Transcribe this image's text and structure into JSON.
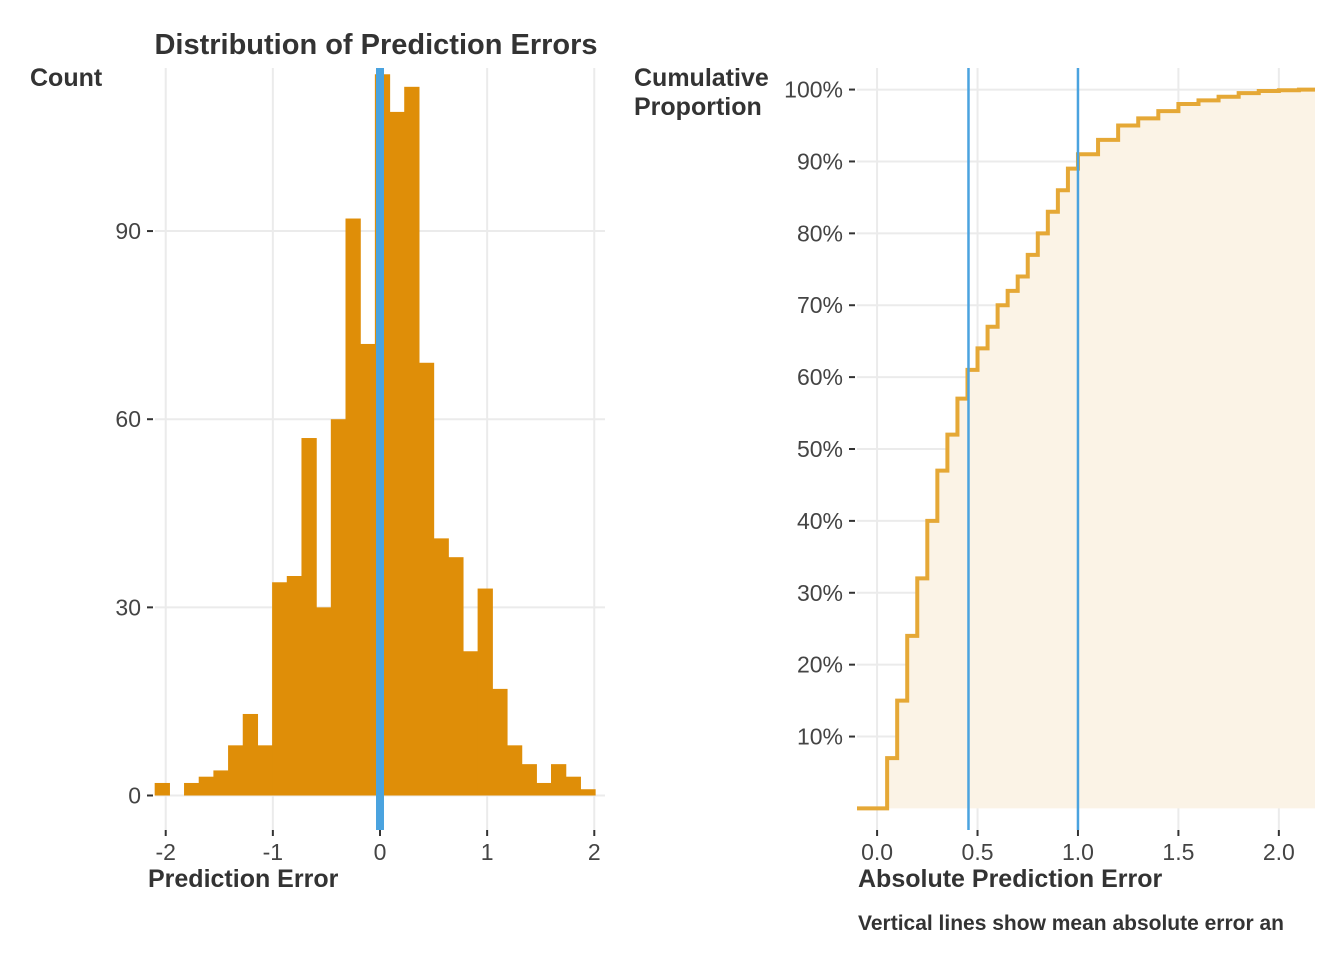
{
  "colors": {
    "bar": "#DF8E08",
    "zero_line": "#4AA3DF",
    "ecdf_line": "#E5A836",
    "ecdf_fill": "#FBF3E6",
    "vline": "#4AA3DF",
    "grid": "#EBEBEB",
    "text": "#333333",
    "tick": "#444444"
  },
  "chart_data": [
    {
      "type": "bar",
      "title": "Distribution of Prediction Errors",
      "xlabel": "Prediction Error",
      "ylabel": "Count",
      "xlim": [
        -2.1,
        2.1
      ],
      "ylim": [
        -5.5,
        116
      ],
      "x_ticks": [
        -2,
        -1,
        0,
        1,
        2
      ],
      "x_tick_labels": [
        "-2",
        "-1",
        "0",
        "1",
        "2"
      ],
      "y_ticks": [
        0,
        30,
        60,
        90
      ],
      "y_tick_labels": [
        "0",
        "30",
        "60",
        "90"
      ],
      "bin_width": 0.137,
      "bin_start": -2.103,
      "values": [
        2,
        0,
        2,
        3,
        4,
        8,
        13,
        8,
        34,
        35,
        57,
        30,
        60,
        92,
        72,
        115,
        109,
        113,
        69,
        41,
        38,
        23,
        33,
        17,
        8,
        5,
        2,
        5,
        3,
        1
      ],
      "reference_line_x": 0,
      "grid": true
    },
    {
      "type": "area",
      "ylabel": "Cumulative\nProportion",
      "xlabel": "Absolute Prediction Error",
      "xlim": [
        -0.1,
        2.18
      ],
      "ylim": [
        -0.03,
        1.03
      ],
      "x_ticks": [
        0.0,
        0.5,
        1.0,
        1.5,
        2.0
      ],
      "x_tick_labels": [
        "0.0",
        "0.5",
        "1.0",
        "1.5",
        "2.0"
      ],
      "y_ticks": [
        0.1,
        0.2,
        0.3,
        0.4,
        0.5,
        0.6,
        0.7,
        0.8,
        0.9,
        1.0
      ],
      "y_tick_labels": [
        "10%",
        "20%",
        "30%",
        "40%",
        "50%",
        "60%",
        "70%",
        "80%",
        "90%",
        "100%"
      ],
      "x": [
        -0.1,
        0.0,
        0.05,
        0.1,
        0.15,
        0.2,
        0.25,
        0.3,
        0.35,
        0.4,
        0.45,
        0.5,
        0.55,
        0.6,
        0.65,
        0.7,
        0.75,
        0.8,
        0.85,
        0.9,
        0.95,
        1.0,
        1.1,
        1.2,
        1.3,
        1.4,
        1.5,
        1.6,
        1.7,
        1.8,
        1.9,
        2.0,
        2.1,
        2.18
      ],
      "y": [
        0.0,
        0.0,
        0.07,
        0.15,
        0.24,
        0.32,
        0.4,
        0.47,
        0.52,
        0.57,
        0.61,
        0.64,
        0.67,
        0.7,
        0.72,
        0.74,
        0.77,
        0.8,
        0.83,
        0.86,
        0.89,
        0.91,
        0.93,
        0.95,
        0.96,
        0.97,
        0.98,
        0.985,
        0.99,
        0.995,
        0.998,
        0.999,
        1.0,
        1.0
      ],
      "vlines": [
        0.455,
        1.0
      ],
      "caption": "Vertical lines show mean absolute error an",
      "grid": true
    }
  ]
}
